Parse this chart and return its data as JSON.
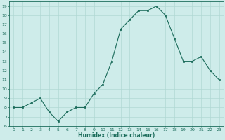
{
  "x": [
    0,
    1,
    2,
    3,
    4,
    5,
    6,
    7,
    8,
    9,
    10,
    11,
    12,
    13,
    14,
    15,
    16,
    17,
    18,
    19,
    20,
    21,
    22,
    23
  ],
  "y": [
    8.0,
    8.0,
    8.5,
    9.0,
    7.5,
    6.5,
    7.5,
    8.0,
    8.0,
    9.5,
    10.5,
    13.0,
    16.5,
    17.5,
    18.5,
    18.5,
    19.0,
    18.0,
    15.5,
    13.0,
    13.0,
    13.5,
    12.0,
    11.0
  ],
  "xlabel": "Humidex (Indice chaleur)",
  "ylim": [
    6,
    19.5
  ],
  "xlim": [
    -0.5,
    23.5
  ],
  "yticks": [
    6,
    7,
    8,
    9,
    10,
    11,
    12,
    13,
    14,
    15,
    16,
    17,
    18,
    19
  ],
  "xticks": [
    0,
    1,
    2,
    3,
    4,
    5,
    6,
    7,
    8,
    9,
    10,
    11,
    12,
    13,
    14,
    15,
    16,
    17,
    18,
    19,
    20,
    21,
    22,
    23
  ],
  "line_color": "#1a6b5a",
  "marker_color": "#1a6b5a",
  "bg_color": "#ceecea",
  "grid_color": "#b0d8d4"
}
